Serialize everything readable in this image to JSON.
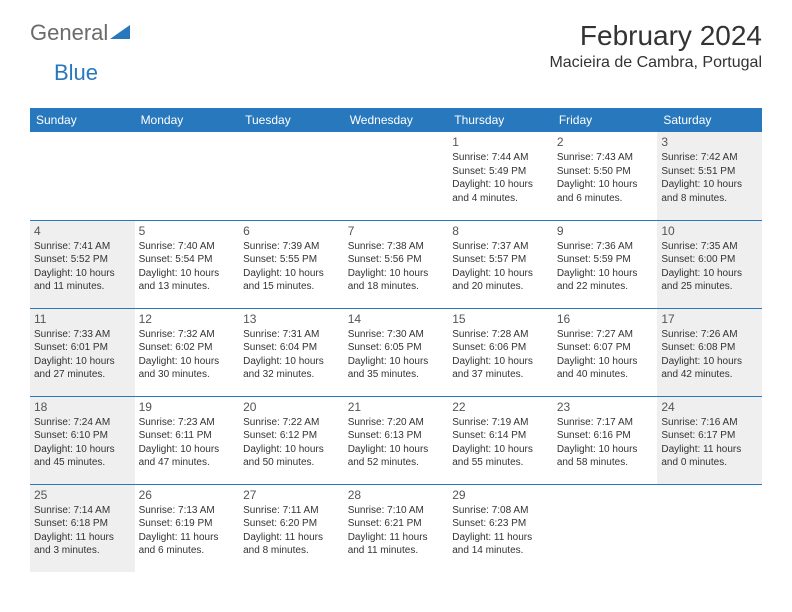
{
  "brand": {
    "part1": "General",
    "part2": "Blue",
    "accent_color": "#2878bd",
    "gray_color": "#6b6b6b"
  },
  "title": "February 2024",
  "location": "Macieira de Cambra, Portugal",
  "colors": {
    "header_bg": "#2878bd",
    "header_text": "#ffffff",
    "shaded_bg": "#efefef",
    "border": "#2878bd"
  },
  "day_headers": [
    "Sunday",
    "Monday",
    "Tuesday",
    "Wednesday",
    "Thursday",
    "Friday",
    "Saturday"
  ],
  "weeks": [
    [
      {
        "blank": true
      },
      {
        "blank": true
      },
      {
        "blank": true
      },
      {
        "blank": true
      },
      {
        "num": "1",
        "shaded": false,
        "sunrise": "Sunrise: 7:44 AM",
        "sunset": "Sunset: 5:49 PM",
        "daylight": "Daylight: 10 hours and 4 minutes."
      },
      {
        "num": "2",
        "shaded": false,
        "sunrise": "Sunrise: 7:43 AM",
        "sunset": "Sunset: 5:50 PM",
        "daylight": "Daylight: 10 hours and 6 minutes."
      },
      {
        "num": "3",
        "shaded": true,
        "sunrise": "Sunrise: 7:42 AM",
        "sunset": "Sunset: 5:51 PM",
        "daylight": "Daylight: 10 hours and 8 minutes."
      }
    ],
    [
      {
        "num": "4",
        "shaded": true,
        "sunrise": "Sunrise: 7:41 AM",
        "sunset": "Sunset: 5:52 PM",
        "daylight": "Daylight: 10 hours and 11 minutes."
      },
      {
        "num": "5",
        "shaded": false,
        "sunrise": "Sunrise: 7:40 AM",
        "sunset": "Sunset: 5:54 PM",
        "daylight": "Daylight: 10 hours and 13 minutes."
      },
      {
        "num": "6",
        "shaded": false,
        "sunrise": "Sunrise: 7:39 AM",
        "sunset": "Sunset: 5:55 PM",
        "daylight": "Daylight: 10 hours and 15 minutes."
      },
      {
        "num": "7",
        "shaded": false,
        "sunrise": "Sunrise: 7:38 AM",
        "sunset": "Sunset: 5:56 PM",
        "daylight": "Daylight: 10 hours and 18 minutes."
      },
      {
        "num": "8",
        "shaded": false,
        "sunrise": "Sunrise: 7:37 AM",
        "sunset": "Sunset: 5:57 PM",
        "daylight": "Daylight: 10 hours and 20 minutes."
      },
      {
        "num": "9",
        "shaded": false,
        "sunrise": "Sunrise: 7:36 AM",
        "sunset": "Sunset: 5:59 PM",
        "daylight": "Daylight: 10 hours and 22 minutes."
      },
      {
        "num": "10",
        "shaded": true,
        "sunrise": "Sunrise: 7:35 AM",
        "sunset": "Sunset: 6:00 PM",
        "daylight": "Daylight: 10 hours and 25 minutes."
      }
    ],
    [
      {
        "num": "11",
        "shaded": true,
        "sunrise": "Sunrise: 7:33 AM",
        "sunset": "Sunset: 6:01 PM",
        "daylight": "Daylight: 10 hours and 27 minutes."
      },
      {
        "num": "12",
        "shaded": false,
        "sunrise": "Sunrise: 7:32 AM",
        "sunset": "Sunset: 6:02 PM",
        "daylight": "Daylight: 10 hours and 30 minutes."
      },
      {
        "num": "13",
        "shaded": false,
        "sunrise": "Sunrise: 7:31 AM",
        "sunset": "Sunset: 6:04 PM",
        "daylight": "Daylight: 10 hours and 32 minutes."
      },
      {
        "num": "14",
        "shaded": false,
        "sunrise": "Sunrise: 7:30 AM",
        "sunset": "Sunset: 6:05 PM",
        "daylight": "Daylight: 10 hours and 35 minutes."
      },
      {
        "num": "15",
        "shaded": false,
        "sunrise": "Sunrise: 7:28 AM",
        "sunset": "Sunset: 6:06 PM",
        "daylight": "Daylight: 10 hours and 37 minutes."
      },
      {
        "num": "16",
        "shaded": false,
        "sunrise": "Sunrise: 7:27 AM",
        "sunset": "Sunset: 6:07 PM",
        "daylight": "Daylight: 10 hours and 40 minutes."
      },
      {
        "num": "17",
        "shaded": true,
        "sunrise": "Sunrise: 7:26 AM",
        "sunset": "Sunset: 6:08 PM",
        "daylight": "Daylight: 10 hours and 42 minutes."
      }
    ],
    [
      {
        "num": "18",
        "shaded": true,
        "sunrise": "Sunrise: 7:24 AM",
        "sunset": "Sunset: 6:10 PM",
        "daylight": "Daylight: 10 hours and 45 minutes."
      },
      {
        "num": "19",
        "shaded": false,
        "sunrise": "Sunrise: 7:23 AM",
        "sunset": "Sunset: 6:11 PM",
        "daylight": "Daylight: 10 hours and 47 minutes."
      },
      {
        "num": "20",
        "shaded": false,
        "sunrise": "Sunrise: 7:22 AM",
        "sunset": "Sunset: 6:12 PM",
        "daylight": "Daylight: 10 hours and 50 minutes."
      },
      {
        "num": "21",
        "shaded": false,
        "sunrise": "Sunrise: 7:20 AM",
        "sunset": "Sunset: 6:13 PM",
        "daylight": "Daylight: 10 hours and 52 minutes."
      },
      {
        "num": "22",
        "shaded": false,
        "sunrise": "Sunrise: 7:19 AM",
        "sunset": "Sunset: 6:14 PM",
        "daylight": "Daylight: 10 hours and 55 minutes."
      },
      {
        "num": "23",
        "shaded": false,
        "sunrise": "Sunrise: 7:17 AM",
        "sunset": "Sunset: 6:16 PM",
        "daylight": "Daylight: 10 hours and 58 minutes."
      },
      {
        "num": "24",
        "shaded": true,
        "sunrise": "Sunrise: 7:16 AM",
        "sunset": "Sunset: 6:17 PM",
        "daylight": "Daylight: 11 hours and 0 minutes."
      }
    ],
    [
      {
        "num": "25",
        "shaded": true,
        "sunrise": "Sunrise: 7:14 AM",
        "sunset": "Sunset: 6:18 PM",
        "daylight": "Daylight: 11 hours and 3 minutes."
      },
      {
        "num": "26",
        "shaded": false,
        "sunrise": "Sunrise: 7:13 AM",
        "sunset": "Sunset: 6:19 PM",
        "daylight": "Daylight: 11 hours and 6 minutes."
      },
      {
        "num": "27",
        "shaded": false,
        "sunrise": "Sunrise: 7:11 AM",
        "sunset": "Sunset: 6:20 PM",
        "daylight": "Daylight: 11 hours and 8 minutes."
      },
      {
        "num": "28",
        "shaded": false,
        "sunrise": "Sunrise: 7:10 AM",
        "sunset": "Sunset: 6:21 PM",
        "daylight": "Daylight: 11 hours and 11 minutes."
      },
      {
        "num": "29",
        "shaded": false,
        "sunrise": "Sunrise: 7:08 AM",
        "sunset": "Sunset: 6:23 PM",
        "daylight": "Daylight: 11 hours and 14 minutes."
      },
      {
        "blank": true
      },
      {
        "blank": true
      }
    ]
  ]
}
